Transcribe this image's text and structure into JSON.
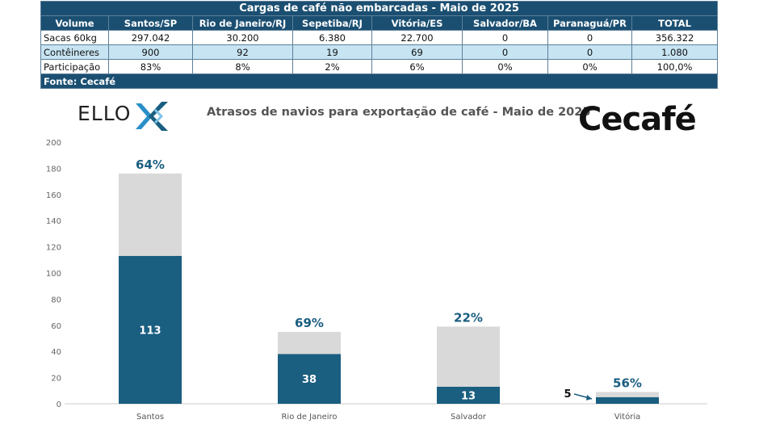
{
  "table": {
    "title": "Cargas de café não embarcadas - Maio de 2025",
    "headers": [
      "Volume",
      "Santos/SP",
      "Rio de Janeiro/RJ",
      "Sepetiba/RJ",
      "Vitória/ES",
      "Salvador/BA",
      "Paranaguá/PR",
      "TOTAL"
    ],
    "rows": [
      [
        "Sacas 60kg",
        "297.042",
        "30.200",
        "6.380",
        "22.700",
        "0",
        "0",
        "356.322"
      ],
      [
        "Contêineres",
        "900",
        "92",
        "19",
        "69",
        "0",
        "0",
        "1.080"
      ],
      [
        "Participação",
        "83%",
        "8%",
        "2%",
        "6%",
        "0%",
        "0%",
        "100,0%"
      ]
    ],
    "source": "Fonte: Cecafé"
  },
  "logos": {
    "ello_text": "ELLO",
    "cecafe_text": "Cecafé"
  },
  "colors": {
    "navy": "#1b4f72",
    "bar_dark": "#1a5e80",
    "bar_light": "#d9d9d9",
    "row_alt": "#c6e4f2"
  },
  "chart_data": {
    "type": "bar",
    "stacked": true,
    "title": "Atrasos de navios para exportação de café - Maio de 2025",
    "categories": [
      "Santos",
      "Rio de Janeiro",
      "Salvador",
      "Vitória"
    ],
    "series": [
      {
        "values": [
          113,
          38,
          13,
          5
        ],
        "data_labels": [
          "113",
          "38",
          "13",
          "5"
        ]
      },
      {
        "values": [
          63,
          17,
          46,
          4
        ]
      }
    ],
    "top_labels": [
      "64%",
      "69%",
      "22%",
      "56%"
    ],
    "ylim": [
      0,
      200
    ],
    "yticks": [
      0,
      20,
      40,
      60,
      80,
      100,
      120,
      140,
      160,
      180,
      200
    ],
    "grid": false,
    "legend": "none"
  }
}
